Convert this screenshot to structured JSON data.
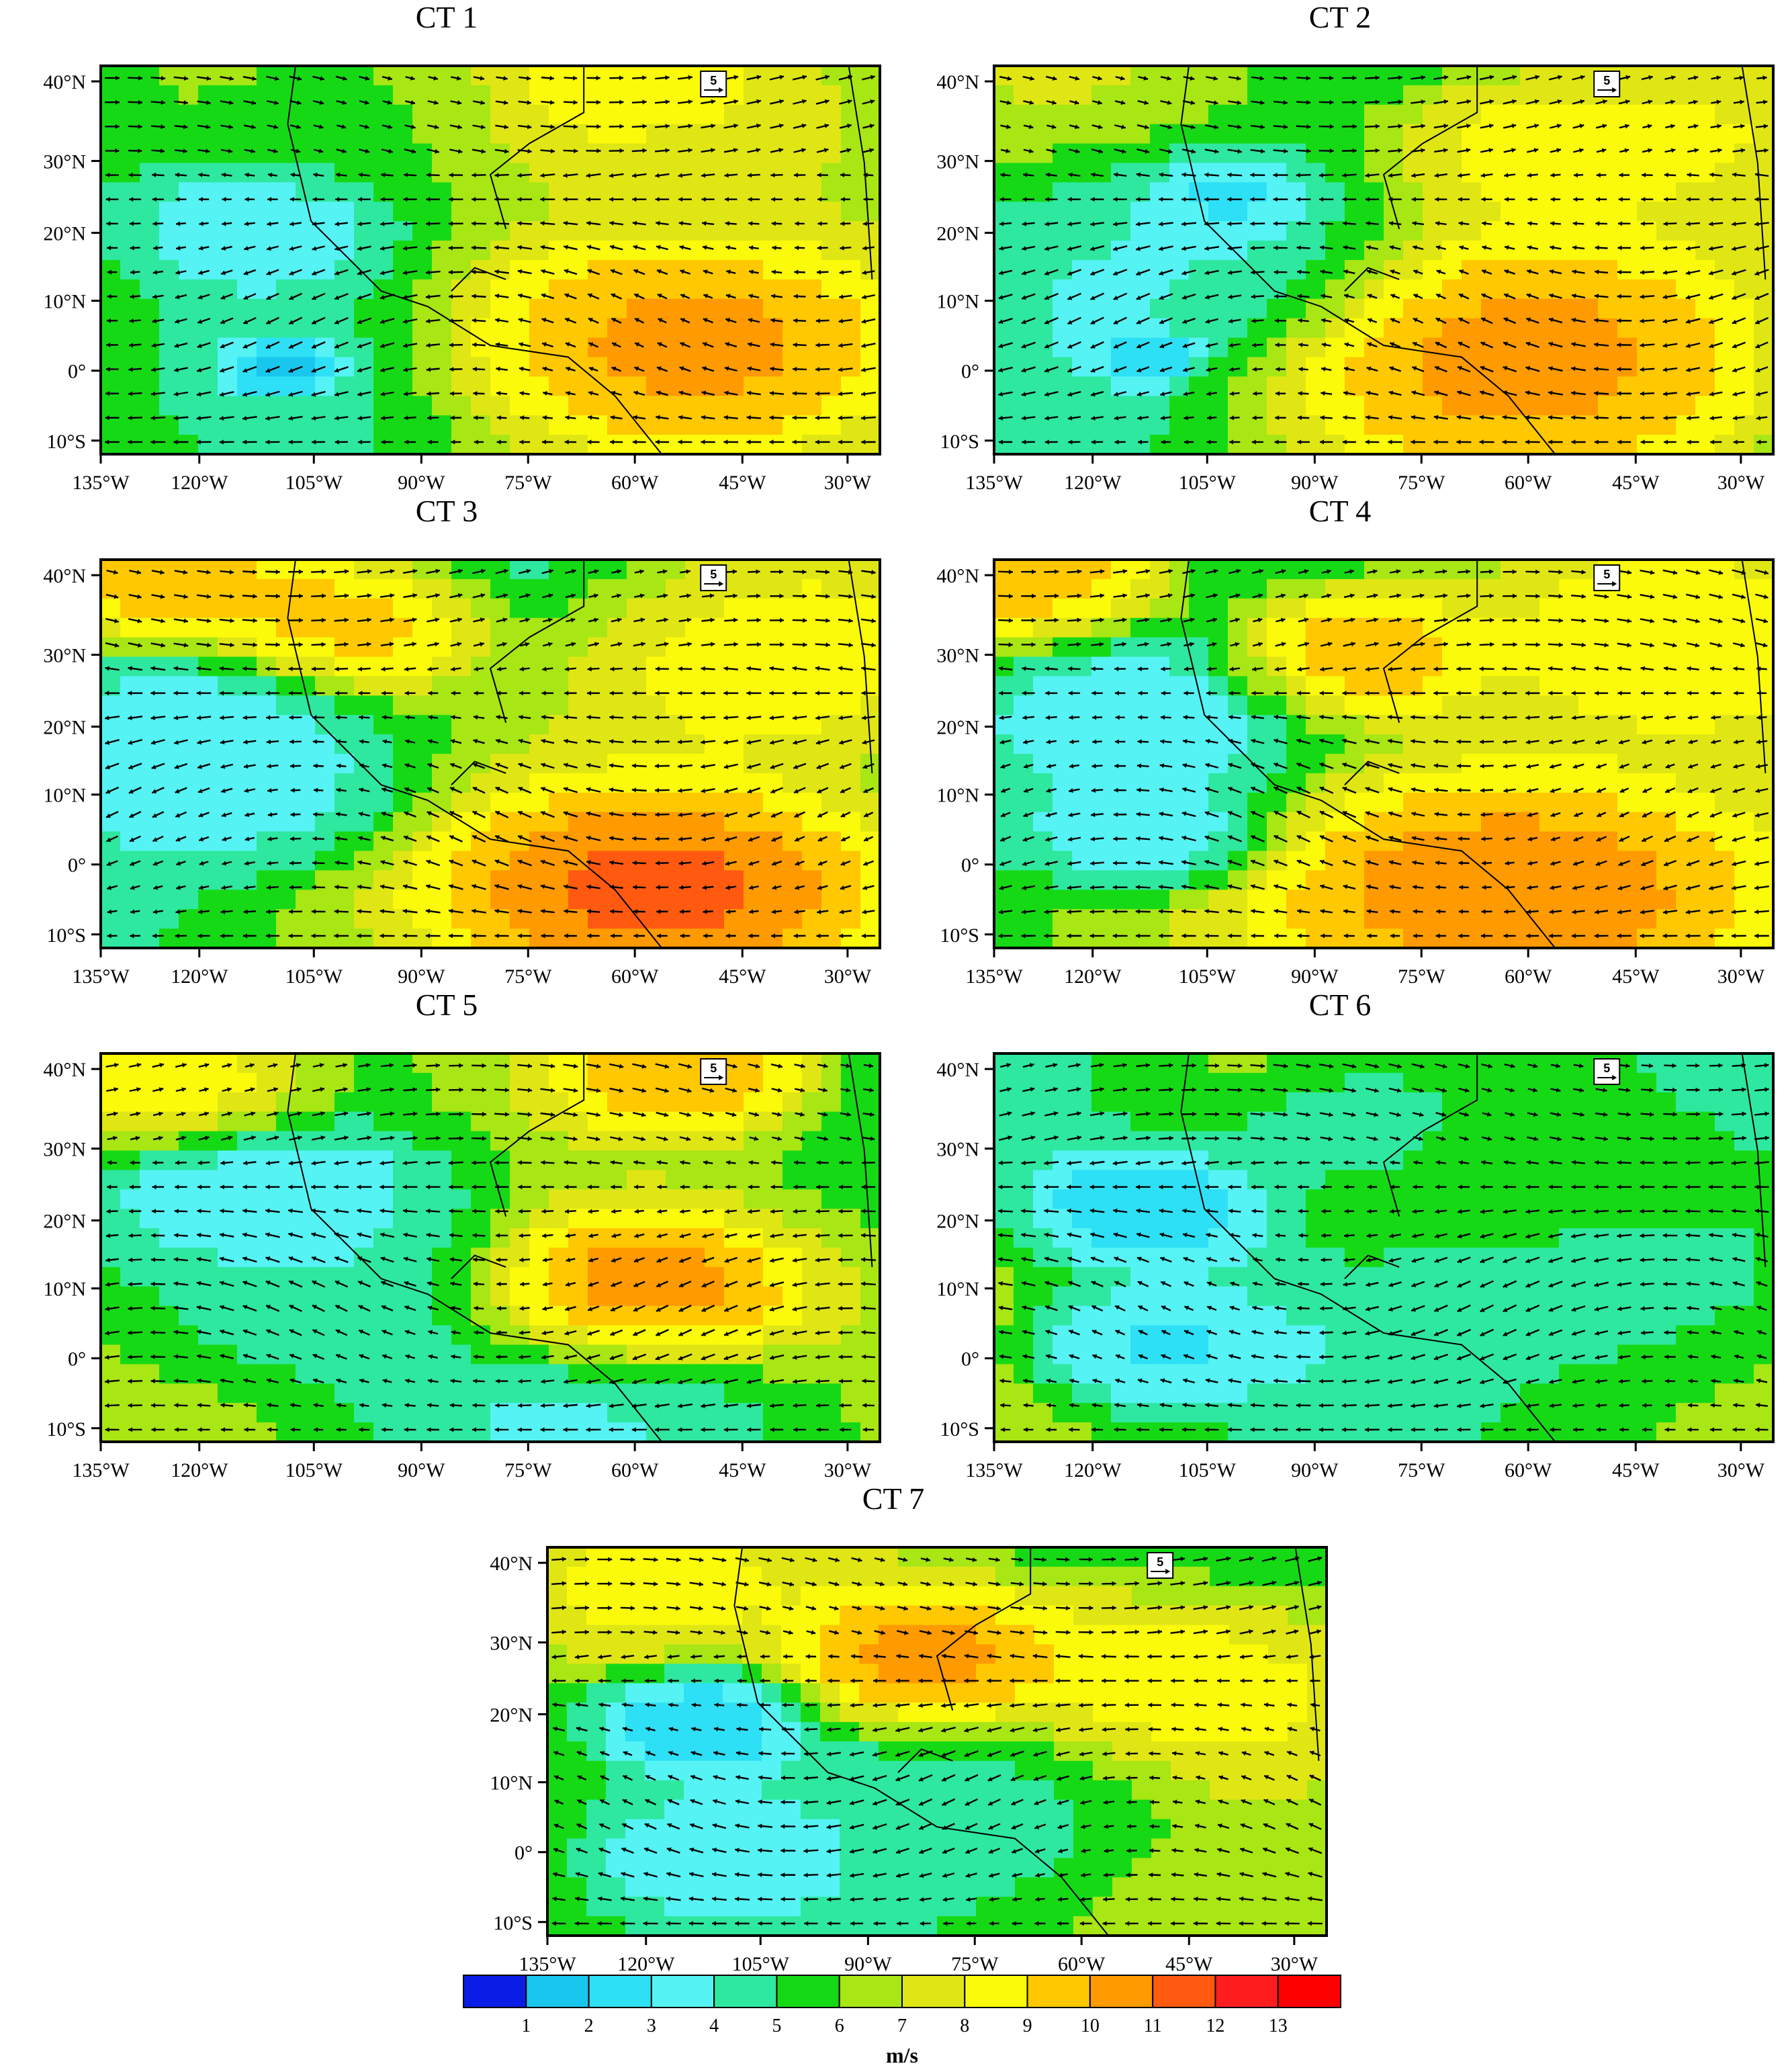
{
  "panels": [
    {
      "title": "CT 1"
    },
    {
      "title": "CT 2"
    },
    {
      "title": "CT 3"
    },
    {
      "title": "CT 4"
    },
    {
      "title": "CT 5"
    },
    {
      "title": "CT 6"
    },
    {
      "title": "CT 7"
    }
  ],
  "lat_labels": [
    "40°N",
    "30°N",
    "20°N",
    "10°N",
    "0°",
    "10°S"
  ],
  "lon_labels": [
    "135°W",
    "120°W",
    "105°W",
    "90°W",
    "75°W",
    "60°W",
    "45°W",
    "30°W"
  ],
  "reference_vector": {
    "label": "5"
  },
  "colorbar": {
    "units": "m/s",
    "levels": [
      "1",
      "2",
      "3",
      "4",
      "5",
      "6",
      "7",
      "8",
      "9",
      "10",
      "11",
      "12",
      "13"
    ],
    "colors": [
      "#0a1de6",
      "#19c6ee",
      "#2ee0f5",
      "#55f3f3",
      "#2ee8a0",
      "#16d916",
      "#a8e614",
      "#e0e614",
      "#fafa0a",
      "#ffc800",
      "#ff9a00",
      "#ff5a10",
      "#ff1e1e",
      "#ff0000"
    ]
  },
  "speed_ramp": [
    "#0a1de6",
    "#19c6ee",
    "#2ee0f5",
    "#55f3f3",
    "#2ee8a0",
    "#16d916",
    "#a8e614",
    "#e0e614",
    "#fafa0a",
    "#ffc800",
    "#ff9a00",
    "#ff5a10",
    "#ff1e1e"
  ]
}
